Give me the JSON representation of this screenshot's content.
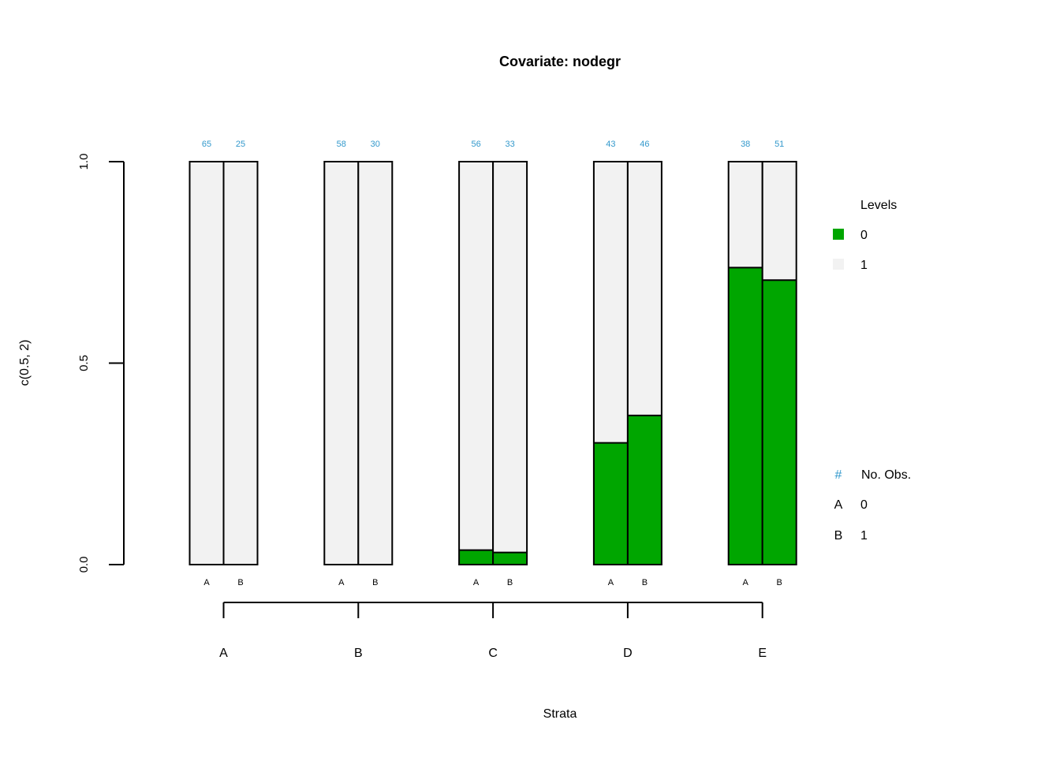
{
  "chart_data": {
    "type": "bar",
    "title": "Covariate: nodegr",
    "xlabel": "Strata",
    "ylabel": "c(0.5, 2)",
    "ylim": [
      0,
      1
    ],
    "yticks": [
      "0.0",
      "0.5",
      "1.0"
    ],
    "ytick_values": [
      0,
      0.5,
      1
    ],
    "strata": [
      "A",
      "B",
      "C",
      "D",
      "E"
    ],
    "treatment_labels": [
      "A",
      "B"
    ],
    "levels_title": "Levels",
    "levels": [
      {
        "name": "0",
        "color": "#00a600"
      },
      {
        "name": "1",
        "color": "#f2f2f2"
      }
    ],
    "counts": [
      [
        65,
        25
      ],
      [
        58,
        30
      ],
      [
        56,
        33
      ],
      [
        43,
        46
      ],
      [
        38,
        51
      ]
    ],
    "series": [
      {
        "name": "0",
        "values": [
          [
            0,
            0
          ],
          [
            0,
            0
          ],
          [
            0.036,
            0.03
          ],
          [
            0.302,
            0.37
          ],
          [
            0.737,
            0.706
          ]
        ]
      },
      {
        "name": "1",
        "values": [
          [
            1,
            1
          ],
          [
            1,
            1
          ],
          [
            0.964,
            0.97
          ],
          [
            0.698,
            0.63
          ],
          [
            0.263,
            0.294
          ]
        ]
      }
    ],
    "obs_legend": {
      "symbol": "#",
      "header": "No. Obs.",
      "rows": [
        {
          "key": "A",
          "value": "0"
        },
        {
          "key": "B",
          "value": "1"
        }
      ]
    }
  }
}
